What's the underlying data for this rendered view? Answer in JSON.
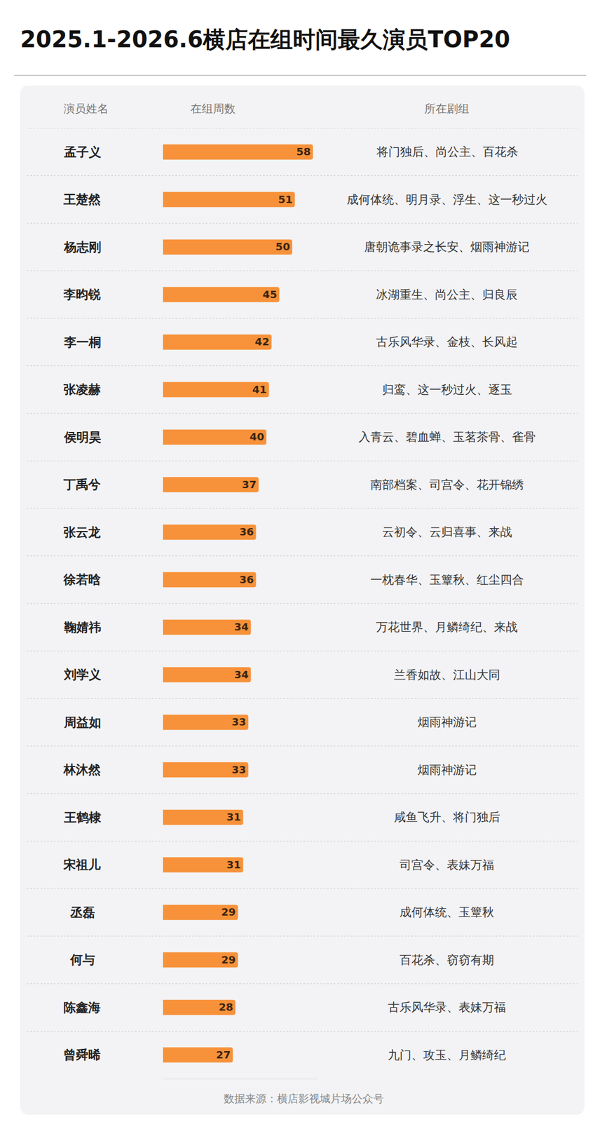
{
  "chart_data": {
    "type": "bar",
    "orientation": "horizontal",
    "title": "2025.1-2026.6横店在组时间最久演员TOP20",
    "headers": [
      "演员姓名",
      "在组周数",
      "所在剧组"
    ],
    "categories": [
      "孟子义",
      "王楚然",
      "杨志刚",
      "李昀锐",
      "李一桐",
      "张凌赫",
      "侯明昊",
      "丁禹兮",
      "张云龙",
      "徐若晗",
      "鞠婧祎",
      "刘学义",
      "周益如",
      "林沐然",
      "王鹤棣",
      "宋祖儿",
      "丞磊",
      "何与",
      "陈鑫海",
      "曾舜晞"
    ],
    "values": [
      58,
      51,
      50,
      45,
      42,
      41,
      40,
      37,
      36,
      36,
      34,
      34,
      33,
      33,
      31,
      31,
      29,
      29,
      28,
      27
    ],
    "groups": [
      "将门独后、尚公主、百花杀",
      "成何体统、明月录、浮生、这一秒过火",
      "唐朝诡事录之长安、烟雨神游记",
      "冰湖重生、尚公主、归良辰",
      "古乐风华录、金枝、长风起",
      "归鸾、这一秒过火、逐玉",
      "入青云、碧血蝉、玉茗茶骨、雀骨",
      "南部档案、司宫令、花开锦绣",
      "云初令、云归喜事、来战",
      "一枕春华、玉簟秋、红尘四合",
      "万花世界、月鳞绮纪、来战",
      "兰香如故、江山大同",
      "烟雨神游记",
      "烟雨神游记",
      "咸鱼飞升、将门独后",
      "司宫令、表妹万福",
      "成何体统、玉簟秋",
      "百花杀、窃窃有期",
      "古乐风华录、表妹万福",
      "九门、攻玉、月鳞绮纪"
    ],
    "source": "数据来源：横店影视城片场公众号",
    "color": "#f7923a",
    "xlim": [
      0,
      60
    ],
    "xticks": [],
    "grid": false,
    "data_labels": true,
    "tick_labels": "y"
  }
}
